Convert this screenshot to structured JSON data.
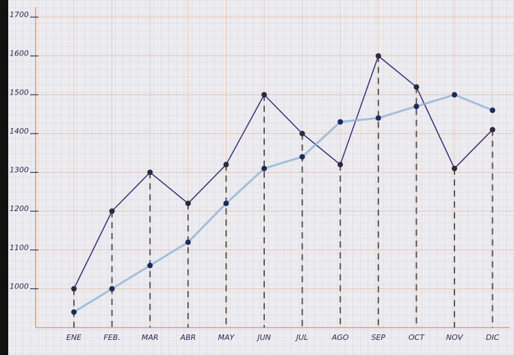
{
  "chart_data": {
    "type": "line",
    "categories": [
      "ENE",
      "FEB.",
      "MAR",
      "ABR",
      "MAY",
      "JUN",
      "JUL",
      "AGO",
      "SEP",
      "OCT",
      "NOV",
      "DIC"
    ],
    "series": [
      {
        "color": "#2e2a78",
        "values": [
          1000,
          1200,
          1300,
          1220,
          1320,
          1500,
          1400,
          1320,
          1600,
          1520,
          1310,
          1410
        ]
      },
      {
        "color": "#8fb4d6",
        "values": [
          940,
          1000,
          1060,
          1120,
          1220,
          1310,
          1340,
          1430,
          1440,
          1470,
          1500,
          1460
        ]
      }
    ],
    "ylim": [
      900,
      1700
    ],
    "yticks": [
      1000,
      1100,
      1200,
      1300,
      1400,
      1500,
      1600,
      1700
    ],
    "grid": true
  }
}
